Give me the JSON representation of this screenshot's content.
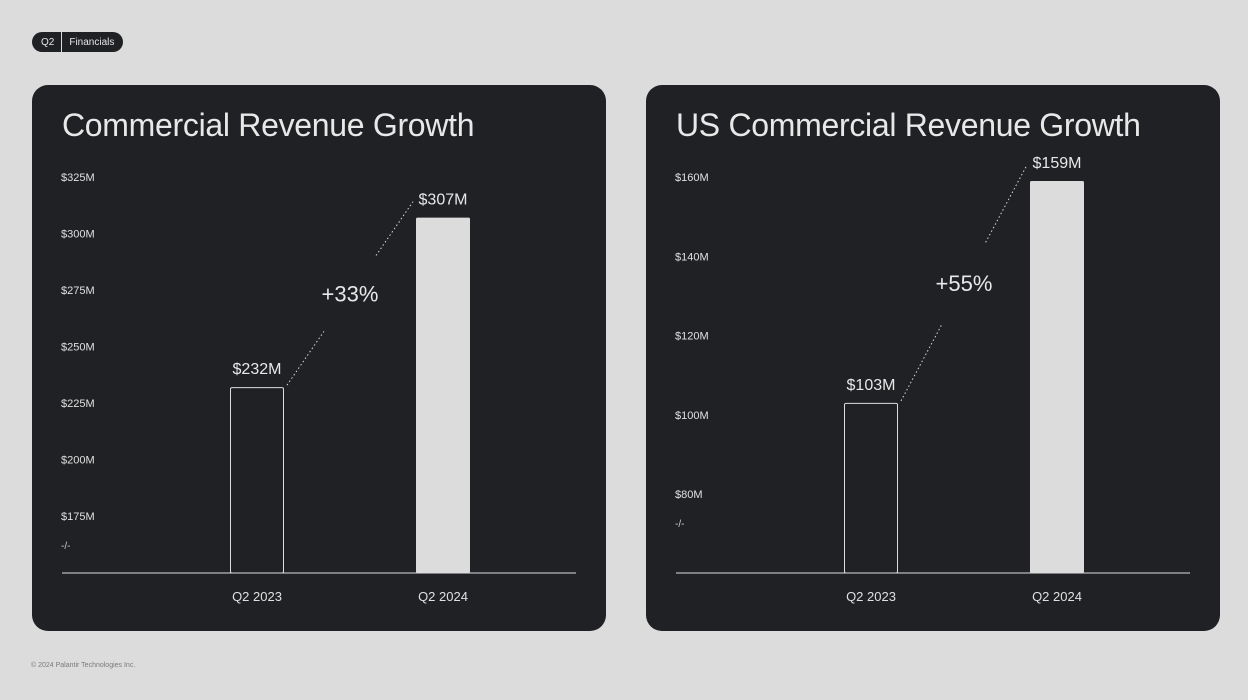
{
  "tag": {
    "left": "Q2",
    "right": "Financials"
  },
  "footer": "© 2024 Palantir Technologies Inc.",
  "colors": {
    "background": "#dcdcdc",
    "card": "#1f2124",
    "bar_fill": "#dcdcdc",
    "text": "#e8e8e8"
  },
  "chart_data": [
    {
      "type": "bar",
      "title": "Commercial Revenue Growth",
      "categories": [
        "Q2 2023",
        "Q2 2024"
      ],
      "values": [
        232,
        307
      ],
      "value_labels": [
        "$232M",
        "$307M"
      ],
      "bar_styles": [
        "outline",
        "filled"
      ],
      "ylim": [
        175,
        325
      ],
      "yticks": [
        175,
        200,
        225,
        250,
        275,
        300,
        325
      ],
      "ytick_labels": [
        "$175M",
        "$200M",
        "$225M",
        "$250M",
        "$275M",
        "$300M",
        "$325M"
      ],
      "axis_break": "-/-",
      "growth_label": "+33%",
      "xlabel": "",
      "ylabel": ""
    },
    {
      "type": "bar",
      "title": "US Commercial Revenue Growth",
      "categories": [
        "Q2 2023",
        "Q2 2024"
      ],
      "values": [
        103,
        159
      ],
      "value_labels": [
        "$103M",
        "$159M"
      ],
      "bar_styles": [
        "outline",
        "filled"
      ],
      "ylim": [
        80,
        160
      ],
      "yticks": [
        80,
        100,
        120,
        140,
        160
      ],
      "ytick_labels": [
        "$80M",
        "$100M",
        "$120M",
        "$140M",
        "$160M"
      ],
      "axis_break": "-/-",
      "growth_label": "+55%",
      "xlabel": "",
      "ylabel": ""
    }
  ]
}
